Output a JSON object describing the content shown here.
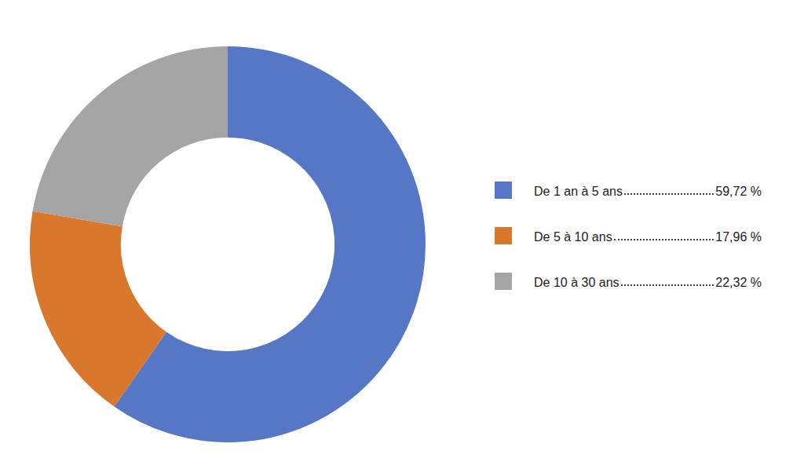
{
  "chart_data": {
    "type": "doughnut",
    "categories": [
      "De 1 an à 5 ans",
      "De 5 à 10 ans",
      "De 10 à 30 ans"
    ],
    "values": [
      59.72,
      17.96,
      22.32
    ],
    "value_labels": [
      "59,72 %",
      "17,96 %",
      "22,32 %"
    ],
    "colors": [
      "#5577c6",
      "#d9782d",
      "#a5a5a5"
    ],
    "legend": "right"
  }
}
